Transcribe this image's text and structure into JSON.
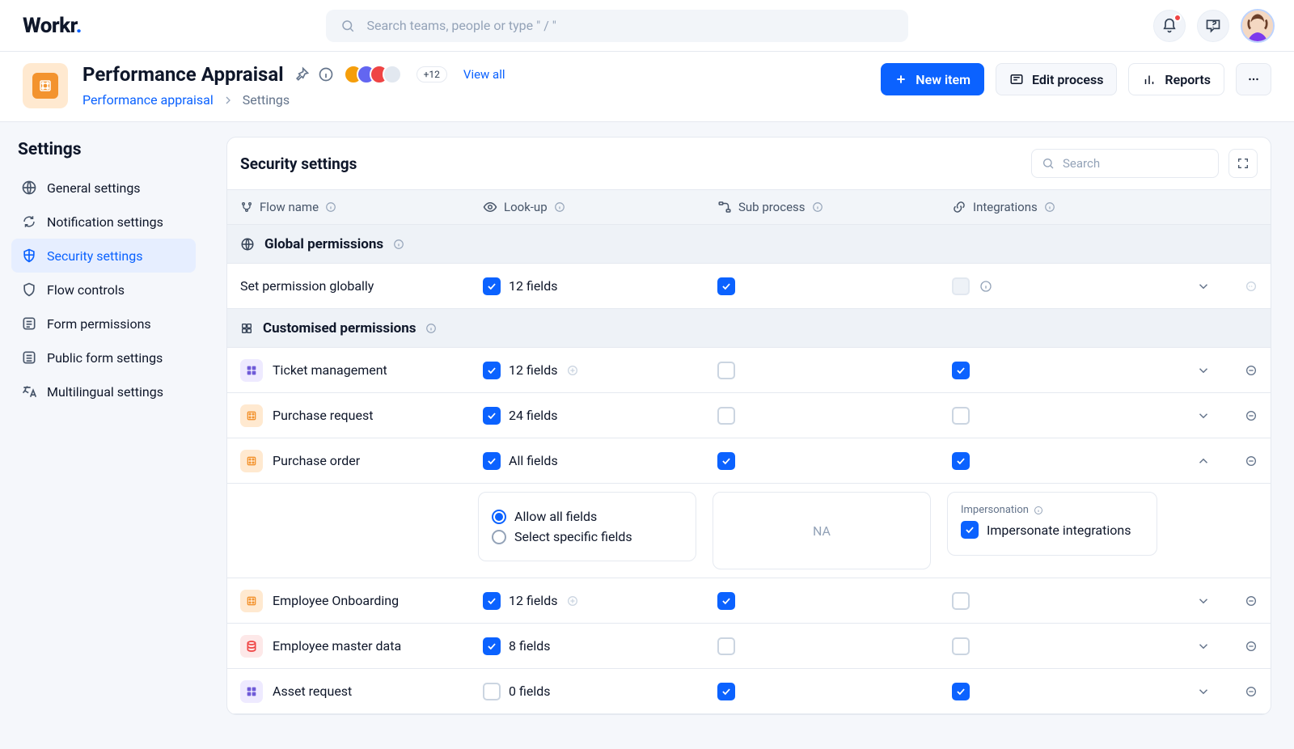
{
  "brand": {
    "name": "Workr",
    "accentChar": "."
  },
  "search": {
    "placeholder": "Search teams, people or type \" / \""
  },
  "header": {
    "title": "Performance Appraisal",
    "viewall": "View all",
    "moreAvatars": "+12",
    "breadcrumb": {
      "parent": "Performance appraisal",
      "current": "Settings"
    },
    "actions": {
      "newItem": "New item",
      "edit": "Edit process",
      "reports": "Reports"
    }
  },
  "sidebar": {
    "title": "Settings",
    "items": [
      {
        "label": "General settings"
      },
      {
        "label": "Notification settings"
      },
      {
        "label": "Security settings",
        "active": true
      },
      {
        "label": "Flow controls"
      },
      {
        "label": "Form permissions"
      },
      {
        "label": "Public form settings"
      },
      {
        "label": "Multilingual settings"
      }
    ]
  },
  "panel": {
    "title": "Security settings",
    "searchPlaceholder": "Search",
    "columns": {
      "flow": "Flow name",
      "lookup": "Look-up",
      "sub": "Sub process",
      "integrations": "Integrations"
    },
    "sectionGlobal": "Global permissions",
    "sectionCustom": "Customised permissions",
    "globalRow": {
      "name": "Set permission globally",
      "lookup": "12 fields"
    },
    "rows": [
      {
        "name": "Ticket management",
        "icon": "purple",
        "lookup": "12 fields",
        "lookupAdd": true,
        "lookChecked": true,
        "sub": false,
        "int": true
      },
      {
        "name": "Purchase request",
        "icon": "orange",
        "lookup": "24 fields",
        "lookChecked": true,
        "sub": false,
        "int": false
      },
      {
        "name": "Purchase order",
        "icon": "orange",
        "lookup": "All fields",
        "lookChecked": true,
        "sub": true,
        "int": true,
        "expanded": true
      },
      {
        "name": "Employee Onboarding",
        "icon": "orange",
        "lookup": "12 fields",
        "lookupAdd": true,
        "lookChecked": true,
        "sub": true,
        "int": false
      },
      {
        "name": "Employee master data",
        "icon": "red",
        "lookup": "8 fields",
        "lookChecked": true,
        "sub": false,
        "int": false
      },
      {
        "name": "Asset request",
        "icon": "purple",
        "lookup": "0 fields",
        "lookChecked": false,
        "sub": true,
        "int": true
      }
    ],
    "detail": {
      "radio1": "Allow all fields",
      "radio2": "Select specific fields",
      "subText": "NA",
      "impTitle": "Impersonation",
      "impCheck": "Impersonate integrations"
    }
  }
}
